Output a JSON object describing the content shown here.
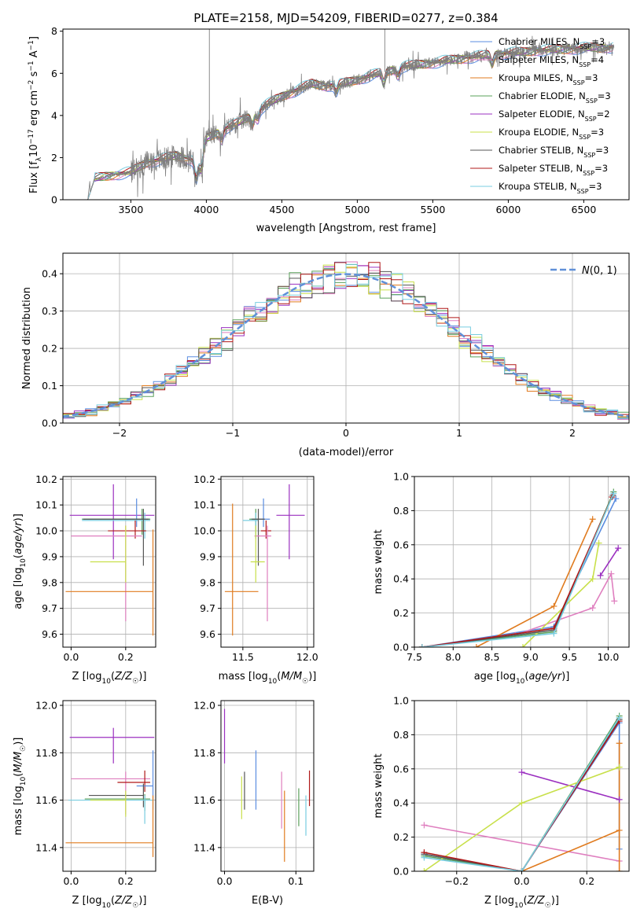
{
  "title": "PLATE=2158, MJD=54209, FIBERID=0277, z=0.384",
  "colors": {
    "Chabrier MILES": "#5b8de0",
    "Salpeter MILES": "#df7fbf",
    "Kroupa MILES": "#e07b1f",
    "Chabrier ELODIE": "#5aa05a",
    "Salpeter ELODIE": "#9b30c0",
    "Kroupa ELODIE": "#c8e04a",
    "Chabrier STELIB": "#555555",
    "Salpeter STELIB": "#b01818",
    "Kroupa STELIB": "#78cde0",
    "gauss": "#6090d8",
    "data": "#7f7f7f"
  },
  "chart_data": [
    {
      "id": "spectrum",
      "type": "line",
      "title": "PLATE=2158, MJD=54209, FIBERID=0277, z=0.384",
      "xlabel": "wavelength [Angstrom, rest frame]",
      "ylabel": "Flux [f_λ 10^-17 erg cm^-2 s^-1 A^-1]",
      "xlim": [
        3050,
        6800
      ],
      "ylim": [
        0,
        8.1
      ],
      "xticks": [
        3500,
        4000,
        4500,
        5000,
        5500,
        6000,
        6500
      ],
      "yticks": [
        0,
        2,
        4,
        6,
        8
      ],
      "grid": false,
      "legend_position": "right",
      "legend": [
        {
          "name": "Chabrier MILES",
          "n_ssp": "3"
        },
        {
          "name": "Salpeter MILES",
          "n_ssp": "4"
        },
        {
          "name": "Kroupa MILES",
          "n_ssp": "3"
        },
        {
          "name": "Chabrier ELODIE",
          "n_ssp": "3"
        },
        {
          "name": "Salpeter ELODIE",
          "n_ssp": "2"
        },
        {
          "name": "Kroupa ELODIE",
          "n_ssp": "3"
        },
        {
          "name": "Chabrier STELIB",
          "n_ssp": "3"
        },
        {
          "name": "Salpeter STELIB",
          "n_ssp": "3"
        },
        {
          "name": "Kroupa STELIB",
          "n_ssp": "3"
        }
      ],
      "continuum": {
        "x": [
          3215,
          3260,
          3400,
          3500,
          3600,
          3700,
          3800,
          3900,
          3950,
          4000,
          4100,
          4200,
          4300,
          4400,
          4500,
          4600,
          4700,
          4800,
          4900,
          5000,
          5100,
          5200,
          5300,
          5400,
          5500,
          5600,
          5700,
          5800,
          5900,
          6000,
          6100,
          6200,
          6300,
          6400,
          6500,
          6600,
          6700
        ],
        "y": [
          0,
          1.0,
          1.2,
          1.3,
          1.75,
          1.9,
          2.1,
          1.9,
          1.7,
          2.9,
          3.3,
          3.6,
          4.0,
          4.5,
          4.9,
          5.2,
          5.5,
          5.4,
          5.5,
          5.7,
          5.9,
          6.1,
          6.3,
          6.4,
          6.5,
          6.6,
          6.7,
          6.8,
          6.9,
          6.95,
          7.0,
          7.1,
          7.1,
          7.15,
          7.2,
          7.2,
          7.25
        ]
      },
      "spikes": [
        {
          "x": 4020,
          "y": 8.1
        },
        {
          "x": 5182,
          "y": 8.1
        }
      ]
    },
    {
      "id": "residuals",
      "type": "histogram",
      "xlabel": "(data-model)/error",
      "ylabel": "Normed distribution",
      "xlim": [
        -2.5,
        2.5
      ],
      "ylim": [
        0,
        0.455
      ],
      "xticks": [
        -2,
        -1,
        0,
        1,
        2
      ],
      "yticks": [
        0.0,
        0.1,
        0.2,
        0.3,
        0.4
      ],
      "grid": true,
      "legend_position": "top-right",
      "legend_label": "N(0,1)",
      "bin_width": 0.1
    },
    {
      "id": "age_vs_Z",
      "type": "errorbar",
      "xlabel": "Z [log10(Z/Z☉)]",
      "ylabel": "age [log10(age/yr)]",
      "xlim": [
        -0.03,
        0.31
      ],
      "ylim": [
        9.55,
        10.21
      ],
      "xticks": [
        0.0,
        0.2
      ],
      "yticks": [
        9.6,
        9.7,
        9.8,
        9.9,
        10.0,
        10.1,
        10.2
      ],
      "grid": true,
      "points": [
        {
          "model": "Salpeter ELODIE",
          "x": 0.155,
          "xerr": [
            0.16,
            0.15
          ],
          "y": 10.06,
          "yerr": [
            0.17,
            0.12
          ]
        },
        {
          "model": "Chabrier MILES",
          "x": 0.24,
          "xerr": [
            0.2,
            0.05
          ],
          "y": 10.045,
          "yerr": [
            0.03,
            0.08
          ]
        },
        {
          "model": "Chabrier ELODIE",
          "x": 0.26,
          "xerr": [
            0.22,
            0.03
          ],
          "y": 10.045,
          "yerr": [
            0.06,
            0.04
          ]
        },
        {
          "model": "Kroupa STELIB",
          "x": 0.27,
          "xerr": [
            0.23,
            0.02
          ],
          "y": 10.04,
          "yerr": [
            0.07,
            0.03
          ]
        },
        {
          "model": "Chabrier STELIB",
          "x": 0.265,
          "xerr": [
            0.22,
            0.02
          ],
          "y": 10.045,
          "yerr": [
            0.18,
            0.04
          ]
        },
        {
          "model": "Salpeter STELIB",
          "x": 0.235,
          "xerr": [
            0.1,
            0.04
          ],
          "y": 10.0,
          "yerr": [
            0.03,
            0.04
          ]
        },
        {
          "model": "Salpeter MILES",
          "x": 0.2,
          "xerr": [
            0.2,
            0.06
          ],
          "y": 9.98,
          "yerr": [
            0.33,
            0.04
          ]
        },
        {
          "model": "Kroupa ELODIE",
          "x": 0.2,
          "xerr": [
            0.13,
            0.0
          ],
          "y": 9.88,
          "yerr": [
            0.08,
            0.14
          ]
        },
        {
          "model": "Kroupa MILES",
          "x": 0.3,
          "xerr": [
            0.32,
            0.0
          ],
          "y": 9.765,
          "yerr": [
            0.17,
            0.24
          ]
        }
      ]
    },
    {
      "id": "age_vs_mass",
      "type": "errorbar",
      "xlabel": "mass [log10(M/M☉)]",
      "ylabel": "",
      "xlim": [
        11.33,
        12.05
      ],
      "ylim": [
        9.55,
        10.21
      ],
      "xticks": [
        11.5,
        12.0
      ],
      "yticks": [
        9.6,
        9.7,
        9.8,
        9.9,
        10.0,
        10.1,
        10.2
      ],
      "grid": true,
      "points": [
        {
          "model": "Salpeter ELODIE",
          "x": 11.86,
          "xerr": [
            0.1,
            0.12
          ],
          "y": 10.06,
          "yerr": [
            0.17,
            0.12
          ]
        },
        {
          "model": "Chabrier MILES",
          "x": 11.66,
          "xerr": [
            0.1,
            0.05
          ],
          "y": 10.045,
          "yerr": [
            0.03,
            0.08
          ]
        },
        {
          "model": "Chabrier ELODIE",
          "x": 11.6,
          "xerr": [
            0.05,
            0.02
          ],
          "y": 10.045,
          "yerr": [
            0.06,
            0.04
          ]
        },
        {
          "model": "Kroupa STELIB",
          "x": 11.6,
          "xerr": [
            0.1,
            0.02
          ],
          "y": 10.04,
          "yerr": [
            0.07,
            0.03
          ]
        },
        {
          "model": "Chabrier STELIB",
          "x": 11.62,
          "xerr": [
            0.05,
            0.05
          ],
          "y": 10.045,
          "yerr": [
            0.18,
            0.04
          ]
        },
        {
          "model": "Salpeter STELIB",
          "x": 11.68,
          "xerr": [
            0.04,
            0.04
          ],
          "y": 10.0,
          "yerr": [
            0.03,
            0.04
          ]
        },
        {
          "model": "Salpeter MILES",
          "x": 11.69,
          "xerr": [
            0.1,
            0.03
          ],
          "y": 9.98,
          "yerr": [
            0.33,
            0.04
          ]
        },
        {
          "model": "Kroupa ELODIE",
          "x": 11.6,
          "xerr": [
            0.04,
            0.07
          ],
          "y": 9.88,
          "yerr": [
            0.08,
            0.14
          ]
        },
        {
          "model": "Kroupa MILES",
          "x": 11.42,
          "xerr": [
            0.06,
            0.2
          ],
          "y": 9.765,
          "yerr": [
            0.17,
            0.34
          ]
        }
      ]
    },
    {
      "id": "weight_vs_age",
      "type": "line",
      "xlabel": "age [log10(age/yr)]",
      "ylabel": "mass weight",
      "xlim": [
        7.5,
        10.27
      ],
      "ylim": [
        0,
        1.0
      ],
      "xticks": [
        7.5,
        8.0,
        8.5,
        9.0,
        9.5,
        10.0
      ],
      "yticks": [
        0.0,
        0.2,
        0.4,
        0.6,
        0.8,
        1.0
      ],
      "grid": true,
      "series": [
        {
          "model": "Chabrier MILES",
          "x": [
            7.6,
            9.3,
            10.1
          ],
          "y": [
            0.0,
            0.12,
            0.87
          ]
        },
        {
          "model": "Salpeter MILES",
          "x": [
            8.8,
            9.8,
            10.04,
            10.08
          ],
          "y": [
            0.07,
            0.23,
            0.43,
            0.27
          ]
        },
        {
          "model": "Kroupa MILES",
          "x": [
            8.3,
            9.3,
            9.8
          ],
          "y": [
            0.0,
            0.24,
            0.75
          ]
        },
        {
          "model": "Chabrier ELODIE",
          "x": [
            7.6,
            9.3,
            10.07
          ],
          "y": [
            0.0,
            0.09,
            0.91
          ]
        },
        {
          "model": "Salpeter ELODIE",
          "x": [
            9.9,
            10.13
          ],
          "y": [
            0.42,
            0.58
          ]
        },
        {
          "model": "Kroupa ELODIE",
          "x": [
            8.9,
            9.8,
            9.88
          ],
          "y": [
            0.0,
            0.4,
            0.61
          ]
        },
        {
          "model": "Chabrier STELIB",
          "x": [
            7.6,
            9.3,
            10.06
          ],
          "y": [
            0.0,
            0.1,
            0.89
          ]
        },
        {
          "model": "Salpeter STELIB",
          "x": [
            7.6,
            9.3,
            10.05
          ],
          "y": [
            0.0,
            0.11,
            0.88
          ]
        },
        {
          "model": "Kroupa STELIB",
          "x": [
            7.6,
            9.3,
            10.07
          ],
          "y": [
            0.0,
            0.08,
            0.9
          ]
        }
      ]
    },
    {
      "id": "mass_vs_Z",
      "type": "errorbar",
      "xlabel": "Z [log10(Z/Z☉)]",
      "ylabel": "mass [log10(M/M☉)]",
      "xlim": [
        -0.03,
        0.31
      ],
      "ylim": [
        11.3,
        12.02
      ],
      "xticks": [
        0.0,
        0.2
      ],
      "yticks": [
        11.4,
        11.6,
        11.8,
        12.0
      ],
      "grid": true,
      "points": [
        {
          "model": "Salpeter ELODIE",
          "x": 0.155,
          "xerr": [
            0.16,
            0.15
          ],
          "y": 11.865,
          "yerr": [
            0.11,
            0.04
          ]
        },
        {
          "model": "Salpeter MILES",
          "x": 0.2,
          "xerr": [
            0.2,
            0.09
          ],
          "y": 11.69,
          "yerr": [
            0.15,
            0.03
          ]
        },
        {
          "model": "Salpeter STELIB",
          "x": 0.27,
          "xerr": [
            0.1,
            0.02
          ],
          "y": 11.675,
          "yerr": [
            0.04,
            0.05
          ]
        },
        {
          "model": "Chabrier MILES",
          "x": 0.3,
          "xerr": [
            0.06,
            0.0
          ],
          "y": 11.66,
          "yerr": [
            0.1,
            0.15
          ]
        },
        {
          "model": "Chabrier STELIB",
          "x": 0.265,
          "xerr": [
            0.2,
            0.0
          ],
          "y": 11.62,
          "yerr": [
            0.05,
            0.05
          ]
        },
        {
          "model": "Chabrier ELODIE",
          "x": 0.27,
          "xerr": [
            0.22,
            0.02
          ],
          "y": 11.605,
          "yerr": [
            0.05,
            0.02
          ]
        },
        {
          "model": "Kroupa STELIB",
          "x": 0.27,
          "xerr": [
            0.28,
            0.03
          ],
          "y": 11.6,
          "yerr": [
            0.1,
            0.02
          ]
        },
        {
          "model": "Kroupa ELODIE",
          "x": 0.2,
          "xerr": [
            0.13,
            0.0
          ],
          "y": 11.6,
          "yerr": [
            0.07,
            0.04
          ]
        },
        {
          "model": "Kroupa MILES",
          "x": 0.3,
          "xerr": [
            0.32,
            0.0
          ],
          "y": 11.42,
          "yerr": [
            0.06,
            0.2
          ]
        }
      ]
    },
    {
      "id": "mass_vs_ebv",
      "type": "errorbar",
      "xlabel": "E(B-V)",
      "ylabel": "",
      "xlim": [
        -0.005,
        0.125
      ],
      "ylim": [
        11.3,
        12.02
      ],
      "xticks": [
        0.0,
        0.1
      ],
      "yticks": [
        11.4,
        11.6,
        11.8,
        12.0
      ],
      "grid": true,
      "points": [
        {
          "model": "Salpeter ELODIE",
          "x": 0.0,
          "y": 11.865,
          "yerr": [
            0.11,
            0.12
          ]
        },
        {
          "model": "Kroupa ELODIE",
          "x": 0.024,
          "y": 11.6,
          "yerr": [
            0.08,
            0.1
          ]
        },
        {
          "model": "Chabrier STELIB",
          "x": 0.028,
          "y": 11.62,
          "yerr": [
            0.06,
            0.1
          ]
        },
        {
          "model": "Chabrier MILES",
          "x": 0.044,
          "y": 11.66,
          "yerr": [
            0.1,
            0.15
          ]
        },
        {
          "model": "Salpeter MILES",
          "x": 0.08,
          "y": 11.6,
          "yerr": [
            0.12,
            0.12
          ]
        },
        {
          "model": "Kroupa MILES",
          "x": 0.084,
          "y": 11.5,
          "yerr": [
            0.16,
            0.14
          ]
        },
        {
          "model": "Chabrier ELODIE",
          "x": 0.104,
          "y": 11.57,
          "yerr": [
            0.08,
            0.08
          ]
        },
        {
          "model": "Kroupa STELIB",
          "x": 0.114,
          "y": 11.53,
          "yerr": [
            0.08,
            0.09
          ]
        },
        {
          "model": "Salpeter STELIB",
          "x": 0.119,
          "y": 11.625,
          "yerr": [
            0.05,
            0.1
          ]
        }
      ]
    },
    {
      "id": "weight_vs_Z",
      "type": "line",
      "xlabel": "Z [log10(Z/Z☉)]",
      "ylabel": "mass weight",
      "xlim": [
        -0.33,
        0.33
      ],
      "ylim": [
        0,
        1.0
      ],
      "xticks": [
        -0.2,
        0.0,
        0.2
      ],
      "yticks": [
        0.0,
        0.2,
        0.4,
        0.6,
        0.8,
        1.0
      ],
      "grid": true,
      "series": [
        {
          "model": "Chabrier MILES",
          "x": [
            -0.3,
            0.0,
            0.3,
            0.3
          ],
          "y": [
            0.1,
            0.0,
            0.87,
            0.13
          ]
        },
        {
          "model": "Salpeter MILES",
          "x": [
            -0.3,
            0.3
          ],
          "y": [
            0.27,
            0.06
          ]
        },
        {
          "model": "Kroupa MILES",
          "x": [
            0.0,
            0.3,
            0.3,
            0.3
          ],
          "y": [
            0.0,
            0.24,
            0.75,
            0.0
          ]
        },
        {
          "model": "Chabrier ELODIE",
          "x": [
            -0.3,
            0.0,
            0.3
          ],
          "y": [
            0.09,
            0.0,
            0.91
          ]
        },
        {
          "model": "Salpeter ELODIE",
          "x": [
            0.0,
            0.3
          ],
          "y": [
            0.58,
            0.42
          ]
        },
        {
          "model": "Kroupa ELODIE",
          "x": [
            -0.3,
            0.0,
            0.3
          ],
          "y": [
            0.0,
            0.4,
            0.61
          ]
        },
        {
          "model": "Chabrier STELIB",
          "x": [
            -0.3,
            0.0,
            0.3
          ],
          "y": [
            0.1,
            0.0,
            0.89
          ]
        },
        {
          "model": "Salpeter STELIB",
          "x": [
            -0.3,
            0.0,
            0.3
          ],
          "y": [
            0.11,
            0.0,
            0.88
          ]
        },
        {
          "model": "Kroupa STELIB",
          "x": [
            -0.3,
            0.0,
            0.3
          ],
          "y": [
            0.08,
            0.0,
            0.9
          ]
        }
      ]
    }
  ]
}
